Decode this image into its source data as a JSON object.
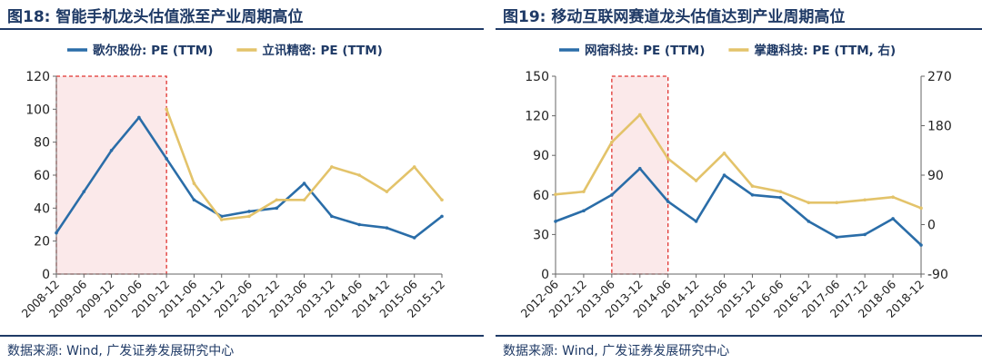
{
  "panels": [
    {
      "figure_label": "图18:",
      "title": "智能手机龙头估值涨至产业周期高位",
      "source": "数据来源: Wind, 广发证券发展研究中心"
    },
    {
      "figure_label": "图19:",
      "title": "移动互联网赛道龙头估值达到产业周期高位",
      "source": "数据来源: Wind, 广发证券发展研究中心"
    }
  ],
  "chart_data": [
    {
      "type": "line",
      "title": "智能手机龙头估值涨至产业周期高位",
      "xlabel": "",
      "ylabel": "",
      "ylim": [
        0,
        120
      ],
      "yticks": [
        "0",
        "20",
        "40",
        "60",
        "80",
        "100",
        "120"
      ],
      "categories": [
        "2008-12",
        "2009-06",
        "2009-12",
        "2010-06",
        "2010-12",
        "2011-06",
        "2011-12",
        "2012-06",
        "2012-12",
        "2013-06",
        "2013-12",
        "2014-06",
        "2014-12",
        "2015-06",
        "2015-12"
      ],
      "legend_position": "top",
      "highlight": {
        "from": "2008-12",
        "to": "2010-12",
        "style": "red-dashed-box"
      },
      "series": [
        {
          "name": "歌尔股份: PE (TTM)",
          "color": "#2a6da8",
          "axis": "left",
          "values": [
            25,
            50,
            75,
            95,
            70,
            45,
            35,
            38,
            40,
            55,
            35,
            30,
            28,
            22,
            35
          ]
        },
        {
          "name": "立讯精密: PE (TTM)",
          "color": "#e3c36a",
          "axis": "left",
          "values": [
            null,
            null,
            null,
            null,
            100,
            55,
            33,
            35,
            45,
            45,
            65,
            60,
            50,
            65,
            45
          ]
        }
      ]
    },
    {
      "type": "line",
      "title": "移动互联网赛道龙头估值达到产业周期高位",
      "xlabel": "",
      "ylabel": "",
      "ylim": [
        0,
        150
      ],
      "ylim_right": [
        -90,
        270
      ],
      "yticks": [
        "0",
        "30",
        "60",
        "90",
        "120",
        "150"
      ],
      "yticks_right": [
        "-90",
        "0",
        "90",
        "180",
        "270"
      ],
      "categories": [
        "2012-06",
        "2012-12",
        "2013-06",
        "2013-12",
        "2014-06",
        "2014-12",
        "2015-06",
        "2015-12",
        "2016-06",
        "2016-12",
        "2017-06",
        "2017-12",
        "2018-06",
        "2018-12"
      ],
      "legend_position": "top",
      "highlight": {
        "from": "2013-06",
        "to": "2014-06",
        "style": "red-dashed-box"
      },
      "series": [
        {
          "name": "网宿科技: PE (TTM)",
          "color": "#2a6da8",
          "axis": "left",
          "values": [
            40,
            48,
            60,
            80,
            55,
            40,
            75,
            60,
            58,
            40,
            28,
            30,
            42,
            22
          ]
        },
        {
          "name": "掌趣科技: PE (TTM, 右)",
          "color": "#e3c36a",
          "axis": "right",
          "values": [
            55,
            60,
            150,
            200,
            120,
            80,
            130,
            70,
            60,
            40,
            40,
            45,
            50,
            30
          ]
        }
      ]
    }
  ]
}
